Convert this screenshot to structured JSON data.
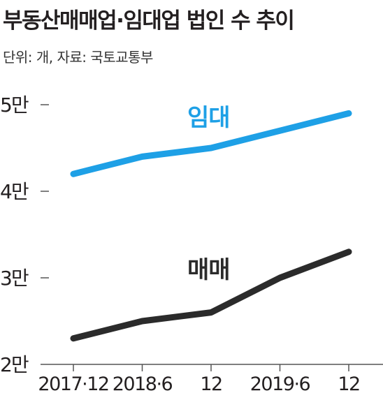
{
  "title": "부동산매매업·임대업 법인 수 추이",
  "subtitle": "단위: 개, 자료: 국토교통부",
  "chart_data": {
    "type": "line",
    "categories": [
      "2017·12",
      "2018·6",
      "12",
      "2019·6",
      "12"
    ],
    "series": [
      {
        "name": "임대",
        "values": [
          42000,
          44000,
          45000,
          47000,
          49000
        ],
        "color": "#1ea0e6"
      },
      {
        "name": "매매",
        "values": [
          23000,
          25000,
          26000,
          30000,
          33000
        ],
        "color": "#2b2b2b"
      }
    ],
    "y_ticks": [
      {
        "value": 50000,
        "label": "5만"
      },
      {
        "value": 40000,
        "label": "4만"
      },
      {
        "value": 30000,
        "label": "3만"
      },
      {
        "value": 20000,
        "label": "2만"
      }
    ],
    "ylim": [
      20000,
      50000
    ],
    "xlabel": "",
    "ylabel": "",
    "grid": false,
    "legend": "inline labels"
  }
}
